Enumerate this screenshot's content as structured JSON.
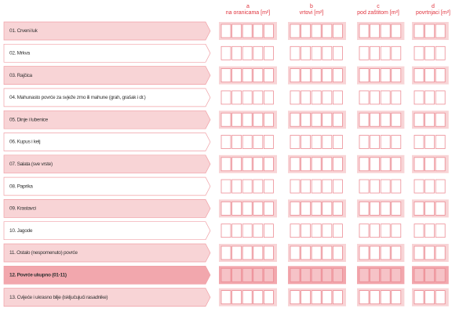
{
  "columns": [
    {
      "letter": "a",
      "label": "na oranicama [m²]"
    },
    {
      "letter": "b",
      "label": "vrtovi [m²]"
    },
    {
      "letter": "c",
      "label": "pod zaštitom [m²]"
    },
    {
      "letter": "d",
      "label": "povrtnjaci [m²]"
    }
  ],
  "rows": [
    "01. Crveni luk",
    "02. Mrkva",
    "03. Rajčica",
    "04. Mahunasto povrće za svježe zrno ili mahune (grah, grašak i dr.)",
    "05. Dinje i lubenice",
    "06. Kupus i kelj",
    "07. Salata (sve vrste)",
    "08. Paprika",
    "09. Krastavci",
    "10. Jagode",
    "11. Ostalo (nespomenuto) povrće",
    "12. Povrće ukupno (01-11)",
    "13. Cvijeće i ukrasno bilje (isključujući rasadnike)"
  ]
}
